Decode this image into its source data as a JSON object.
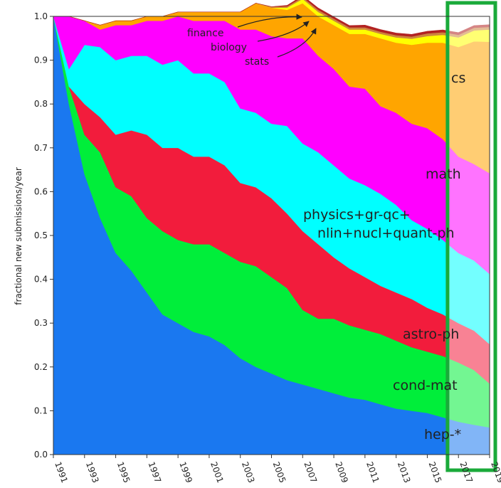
{
  "chart_data": {
    "type": "area",
    "stacked": true,
    "ylabel": "fractional new submissions/year",
    "xlabel": "",
    "x": [
      1991,
      1992,
      1993,
      1994,
      1995,
      1996,
      1997,
      1998,
      1999,
      2000,
      2001,
      2002,
      2003,
      2004,
      2005,
      2006,
      2007,
      2008,
      2009,
      2010,
      2011,
      2012,
      2013,
      2014,
      2015,
      2016,
      2017,
      2018,
      2019
    ],
    "x_ticks": [
      "1991",
      "1993",
      "1995",
      "1997",
      "1999",
      "2001",
      "2003",
      "2005",
      "2007",
      "2009",
      "2011",
      "2013",
      "2015",
      "2017",
      "2019"
    ],
    "y_ticks": [
      "0.0",
      "0.1",
      "0.2",
      "0.3",
      "0.4",
      "0.5",
      "0.6",
      "0.7",
      "0.8",
      "0.9",
      "1.0"
    ],
    "ylim": [
      0,
      1.0
    ],
    "xlim": [
      1991,
      2019
    ],
    "series": [
      {
        "name": "hep-*",
        "color": "#1a78f0",
        "values": [
          1.0,
          0.8,
          0.64,
          0.54,
          0.46,
          0.42,
          0.37,
          0.32,
          0.3,
          0.28,
          0.27,
          0.25,
          0.22,
          0.2,
          0.185,
          0.17,
          0.16,
          0.15,
          0.14,
          0.13,
          0.125,
          0.115,
          0.105,
          0.1,
          0.095,
          0.085,
          0.075,
          0.068,
          0.062
        ]
      },
      {
        "name": "cond-mat",
        "color": "#00ee3a",
        "values": [
          0.0,
          0.04,
          0.09,
          0.15,
          0.15,
          0.17,
          0.17,
          0.19,
          0.19,
          0.2,
          0.21,
          0.21,
          0.22,
          0.23,
          0.22,
          0.21,
          0.17,
          0.16,
          0.17,
          0.165,
          0.16,
          0.16,
          0.155,
          0.145,
          0.14,
          0.14,
          0.135,
          0.125,
          0.1
        ]
      },
      {
        "name": "astro-ph",
        "color": "#f21c3c",
        "values": [
          0.0,
          0.0,
          0.07,
          0.08,
          0.12,
          0.15,
          0.19,
          0.19,
          0.21,
          0.2,
          0.2,
          0.2,
          0.18,
          0.18,
          0.18,
          0.17,
          0.18,
          0.17,
          0.14,
          0.13,
          0.12,
          0.11,
          0.11,
          0.11,
          0.1,
          0.095,
          0.09,
          0.09,
          0.09
        ]
      },
      {
        "name": "physics+gr-qc+nlin+nucl+quant-ph",
        "color": "#00ffff",
        "values": [
          0.0,
          0.04,
          0.135,
          0.16,
          0.17,
          0.17,
          0.18,
          0.19,
          0.2,
          0.19,
          0.19,
          0.19,
          0.17,
          0.17,
          0.17,
          0.2,
          0.2,
          0.21,
          0.21,
          0.205,
          0.21,
          0.21,
          0.2,
          0.18,
          0.18,
          0.17,
          0.16,
          0.16,
          0.16
        ]
      },
      {
        "name": "math",
        "color": "#ff00ff",
        "values": [
          0.0,
          0.12,
          0.055,
          0.04,
          0.08,
          0.07,
          0.08,
          0.1,
          0.1,
          0.12,
          0.12,
          0.14,
          0.18,
          0.19,
          0.2,
          0.2,
          0.24,
          0.22,
          0.22,
          0.21,
          0.22,
          0.2,
          0.21,
          0.22,
          0.23,
          0.23,
          0.22,
          0.22,
          0.23
        ]
      },
      {
        "name": "cs",
        "color": "#ffa500",
        "values": [
          0.0,
          0.0,
          0.0,
          0.01,
          0.01,
          0.01,
          0.01,
          0.01,
          0.01,
          0.02,
          0.02,
          0.02,
          0.04,
          0.06,
          0.065,
          0.065,
          0.08,
          0.09,
          0.1,
          0.12,
          0.125,
          0.155,
          0.16,
          0.18,
          0.195,
          0.22,
          0.25,
          0.28,
          0.3
        ]
      },
      {
        "name": "stats",
        "color": "#ffff00",
        "values": [
          0.0,
          0.0,
          0.0,
          0.0,
          0.0,
          0.0,
          0.0,
          0.0,
          0.0,
          0.0,
          0.0,
          0.0,
          0.0,
          0.0,
          0.0,
          0.005,
          0.01,
          0.01,
          0.01,
          0.01,
          0.01,
          0.01,
          0.012,
          0.014,
          0.015,
          0.018,
          0.022,
          0.025,
          0.028
        ]
      },
      {
        "name": "biology",
        "color": "#cd853f",
        "values": [
          0.0,
          0.0,
          0.0,
          0.0,
          0.0,
          0.0,
          0.0,
          0.0,
          0.0,
          0.0,
          0.0,
          0.0,
          0.0,
          0.0,
          0.002,
          0.003,
          0.004,
          0.005,
          0.005,
          0.005,
          0.005,
          0.005,
          0.005,
          0.005,
          0.006,
          0.006,
          0.006,
          0.006,
          0.006
        ]
      },
      {
        "name": "finance",
        "color": "#b22222",
        "values": [
          0.0,
          0.0,
          0.0,
          0.0,
          0.0,
          0.0,
          0.0,
          0.0,
          0.0,
          0.0,
          0.0,
          0.0,
          0.0,
          0.0,
          0.0,
          0.002,
          0.003,
          0.004,
          0.004,
          0.004,
          0.005,
          0.005,
          0.005,
          0.005,
          0.005,
          0.005,
          0.005,
          0.005,
          0.005
        ]
      }
    ],
    "labels": {
      "hep": "hep-*",
      "condmat": "cond-mat",
      "astro": "astro-ph",
      "physics1": "physics+gr-qc+",
      "physics2": "nlin+nucl+quant-ph",
      "math": "math",
      "cs": "cs",
      "finance": "finance",
      "biology": "biology",
      "stats": "stats"
    },
    "highlight": {
      "from": 2016.3,
      "to": 2019,
      "color": "#1aaa3a"
    }
  }
}
